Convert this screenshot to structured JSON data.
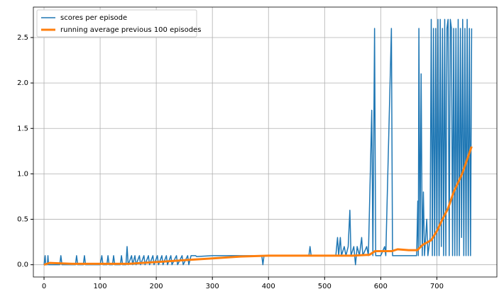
{
  "chart_data": {
    "type": "line",
    "xlim": [
      -19,
      807
    ],
    "ylim": [
      -0.135,
      2.835
    ],
    "xticks": [
      0,
      100,
      200,
      300,
      400,
      500,
      600,
      700
    ],
    "yticks": [
      {
        "value": 0,
        "label": "0.0"
      },
      0.5,
      {
        "value": 1,
        "label": "1.0"
      },
      1.5,
      {
        "value": 2,
        "label": "2.0"
      },
      2.5
    ],
    "grid": true,
    "legend": "upper left",
    "series": [
      {
        "name": "scores per episode",
        "color": "#1f77b4",
        "width": 1.5,
        "x": [
          0,
          2,
          3,
          6,
          7,
          8,
          28,
          30,
          32,
          56,
          58,
          60,
          70,
          72,
          74,
          100,
          103,
          105,
          112,
          114,
          116,
          122,
          124,
          126,
          136,
          138,
          140,
          146,
          148,
          150,
          156,
          158,
          162,
          164,
          170,
          172,
          178,
          180,
          186,
          188,
          194,
          196,
          202,
          204,
          210,
          212,
          218,
          220,
          226,
          228,
          236,
          238,
          246,
          248,
          256,
          258,
          262,
          270,
          272,
          300,
          340,
          388,
          390,
          392,
          472,
          474,
          476,
          520,
          523,
          525,
          528,
          530,
          535,
          538,
          542,
          545,
          547,
          552,
          555,
          558,
          562,
          566,
          568,
          575,
          578,
          584,
          586,
          589,
          591,
          600,
          607,
          609,
          619,
          621,
          640,
          664,
          666,
          667,
          668,
          670,
          672,
          674,
          676,
          678,
          682,
          684,
          688,
          690,
          692,
          694,
          696,
          698,
          700,
          702,
          704,
          706,
          708,
          710,
          712,
          714,
          716,
          718,
          720,
          722,
          724,
          726,
          728,
          730,
          732,
          734,
          736,
          738,
          740,
          742,
          744,
          746,
          748,
          750,
          752,
          754,
          756,
          758,
          760,
          762
        ],
        "values": [
          0,
          0.1,
          0,
          0,
          0.1,
          0,
          0,
          0.1,
          0,
          0,
          0.1,
          0,
          0,
          0.1,
          0,
          0,
          0.1,
          0,
          0,
          0.1,
          0,
          0,
          0.1,
          0,
          0,
          0.1,
          0,
          0,
          0.2,
          0,
          0.1,
          0,
          0.1,
          0,
          0.1,
          0,
          0.1,
          0,
          0.1,
          0,
          0.1,
          0,
          0.1,
          0,
          0.1,
          0,
          0.1,
          0,
          0.1,
          0,
          0.1,
          0,
          0.1,
          0,
          0.1,
          0,
          0.1,
          0.1,
          0.09,
          0.1,
          0.1,
          0.1,
          0,
          0.1,
          0.1,
          0.2,
          0.1,
          0.1,
          0.3,
          0.1,
          0.3,
          0.1,
          0.2,
          0.1,
          0.2,
          0.6,
          0.1,
          0.2,
          0,
          0.2,
          0.1,
          0.3,
          0.1,
          0.2,
          0.1,
          1.7,
          0.1,
          2.6,
          0.1,
          0.1,
          0.2,
          0.1,
          2.6,
          0.1,
          0.1,
          0.1,
          0.7,
          0.1,
          2.6,
          0.2,
          2.1,
          0.1,
          0.8,
          0.1,
          0.5,
          0.1,
          0.3,
          2.7,
          0.1,
          2.6,
          0.1,
          2.6,
          0.1,
          2.7,
          0.1,
          2.7,
          0.2,
          2.6,
          0.1,
          2.7,
          0.1,
          2.6,
          2.7,
          0.1,
          2.7,
          2.6,
          0.1,
          2.6,
          0.1,
          2.6,
          0.1,
          2.7,
          0.1,
          2.6,
          0.3,
          2.7,
          0.1,
          2.6,
          0.1,
          2.7,
          0.1,
          2.6,
          0.1,
          2.6
        ]
      },
      {
        "name": "running average previous 100 episodes",
        "color": "#ff7f0e",
        "width": 3,
        "x": [
          0,
          10,
          50,
          150,
          200,
          250,
          300,
          350,
          400,
          550,
          580,
          590,
          620,
          630,
          650,
          665,
          675,
          690,
          700,
          710,
          720,
          730,
          745,
          762
        ],
        "values": [
          0,
          0.02,
          0.01,
          0.01,
          0.03,
          0.05,
          0.07,
          0.09,
          0.1,
          0.1,
          0.11,
          0.15,
          0.15,
          0.17,
          0.16,
          0.16,
          0.22,
          0.27,
          0.37,
          0.5,
          0.62,
          0.8,
          1.0,
          1.3
        ]
      }
    ]
  }
}
